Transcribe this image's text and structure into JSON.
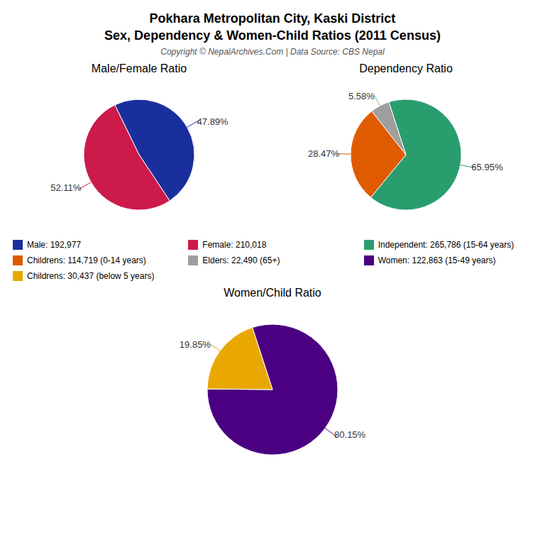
{
  "title": "Pokhara Metropolitan City, Kaski District",
  "subtitle": "Sex, Dependency & Women-Child Ratios (2011 Census)",
  "annotations": [
    "Copyright © NepalArchives.Com | Data Source: CBS Nepal"
  ],
  "chart_data": [
    {
      "type": "pie",
      "title": "Male/Female Ratio",
      "categories": [
        "Male: 192,977",
        "Female: 210,018"
      ],
      "values": [
        47.89,
        52.11
      ],
      "value_labels": [
        "47.89%",
        "52.11%"
      ],
      "colors": [
        "#1a2f9e",
        "#cc1a4a"
      ],
      "data_labels": true
    },
    {
      "type": "pie",
      "title": "Dependency Ratio",
      "categories": [
        "Independent: 265,786 (15-64 years)",
        "Childrens: 114,719 (0-14 years)",
        "Elders: 22,490 (65+)"
      ],
      "values": [
        65.95,
        28.47,
        5.58
      ],
      "value_labels": [
        "65.95%",
        "28.47%",
        "5.58%"
      ],
      "colors": [
        "#2a9d6e",
        "#e05a00",
        "#9e9e9e"
      ],
      "data_labels": true
    },
    {
      "type": "pie",
      "title": "Women/Child Ratio",
      "categories": [
        "Women: 122,863 (15-49 years)",
        "Childrens: 30,437 (below 5 years)"
      ],
      "values": [
        80.15,
        19.85
      ],
      "value_labels": [
        "80.15%",
        "19.85%"
      ],
      "colors": [
        "#4b0082",
        "#e8a800"
      ],
      "data_labels": true
    }
  ]
}
